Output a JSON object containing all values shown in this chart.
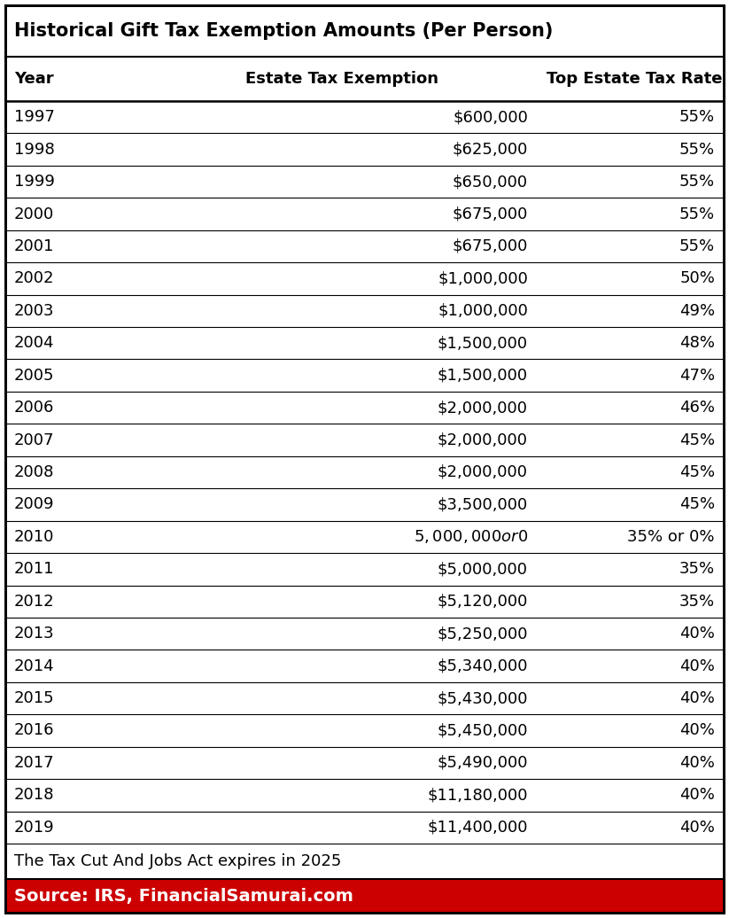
{
  "title": "Historical Gift Tax Exemption Amounts (Per Person)",
  "col_headers": [
    "Year",
    "Estate Tax Exemption",
    "Top Estate Tax Rate"
  ],
  "rows": [
    [
      "1997",
      "$600,000",
      "55%"
    ],
    [
      "1998",
      "$625,000",
      "55%"
    ],
    [
      "1999",
      "$650,000",
      "55%"
    ],
    [
      "2000",
      "$675,000",
      "55%"
    ],
    [
      "2001",
      "$675,000",
      "55%"
    ],
    [
      "2002",
      "$1,000,000",
      "50%"
    ],
    [
      "2003",
      "$1,000,000",
      "49%"
    ],
    [
      "2004",
      "$1,500,000",
      "48%"
    ],
    [
      "2005",
      "$1,500,000",
      "47%"
    ],
    [
      "2006",
      "$2,000,000",
      "46%"
    ],
    [
      "2007",
      "$2,000,000",
      "45%"
    ],
    [
      "2008",
      "$2,000,000",
      "45%"
    ],
    [
      "2009",
      "$3,500,000",
      "45%"
    ],
    [
      "2010",
      "$5,000,000 or $0",
      "35% or 0%"
    ],
    [
      "2011",
      "$5,000,000",
      "35%"
    ],
    [
      "2012",
      "$5,120,000",
      "35%"
    ],
    [
      "2013",
      "$5,250,000",
      "40%"
    ],
    [
      "2014",
      "$5,340,000",
      "40%"
    ],
    [
      "2015",
      "$5,430,000",
      "40%"
    ],
    [
      "2016",
      "$5,450,000",
      "40%"
    ],
    [
      "2017",
      "$5,490,000",
      "40%"
    ],
    [
      "2018",
      "$11,180,000",
      "40%"
    ],
    [
      "2019",
      "$11,400,000",
      "40%"
    ]
  ],
  "footer_note": "The Tax Cut And Jobs Act expires in 2025",
  "source_text": "Source: IRS, FinancialSamurai.com",
  "source_bg": "#cc0000",
  "source_text_color": "#ffffff",
  "border_color": "#000000",
  "text_color": "#000000",
  "bg_color": "#ffffff",
  "title_fontsize": 15,
  "header_fontsize": 13,
  "row_fontsize": 13,
  "footer_fontsize": 13,
  "source_fontsize": 14
}
